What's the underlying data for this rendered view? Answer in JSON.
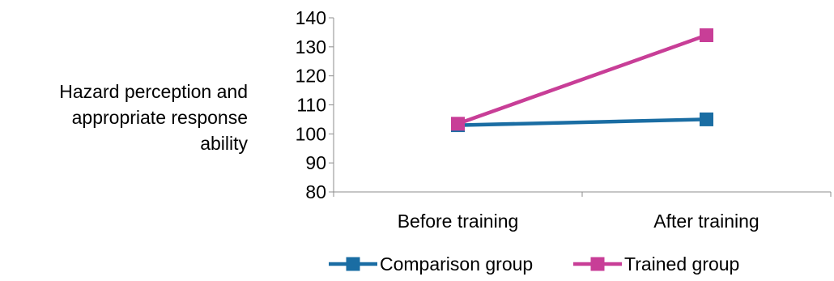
{
  "chart_data": {
    "type": "line",
    "title": "",
    "xlabel": "",
    "ylabel_lines": [
      "Hazard perception and",
      "appropriate response",
      "ability"
    ],
    "categories": [
      "Before training",
      "After training"
    ],
    "y_ticks": [
      "80",
      "90",
      "100",
      "110",
      "120",
      "130",
      "140"
    ],
    "ylim": [
      80,
      140
    ],
    "grid": false,
    "legend_position": "bottom",
    "series": [
      {
        "name": "Comparison group",
        "values": [
          103,
          105
        ],
        "color": "#1a6da3",
        "marker": "square"
      },
      {
        "name": "Trained group",
        "values": [
          103.5,
          134
        ],
        "color": "#c83e97",
        "marker": "square"
      }
    ]
  }
}
